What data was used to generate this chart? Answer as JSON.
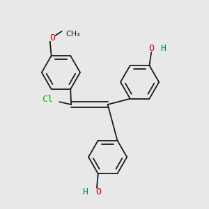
{
  "bg_color": "#e8e8e8",
  "bond_color": "#1a1a1a",
  "cl_color": "#00bb00",
  "o_color": "#cc0000",
  "teal_color": "#008080",
  "line_width": 1.3,
  "font_size": 9.5,
  "ring_r": 0.3,
  "xlim": [
    0,
    3.0
  ],
  "ylim": [
    0,
    3.2
  ]
}
